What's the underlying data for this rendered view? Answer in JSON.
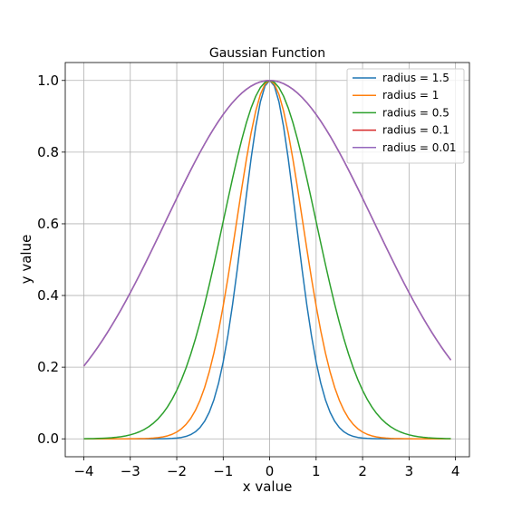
{
  "chart_data": {
    "type": "line",
    "title": "Gaussian Function",
    "xlabel": "x value",
    "ylabel": "y value",
    "xlim": [
      -4.4,
      4.3
    ],
    "ylim": [
      -0.05,
      1.05
    ],
    "xticks": [
      -4,
      -3,
      -2,
      -1,
      0,
      1,
      2,
      3,
      4
    ],
    "yticks": [
      0.0,
      0.2,
      0.4,
      0.6,
      0.8,
      1.0
    ],
    "xtick_labels": [
      "−4",
      "−3",
      "−2",
      "−1",
      "0",
      "1",
      "2",
      "3",
      "4"
    ],
    "ytick_labels": [
      "0.0",
      "0.2",
      "0.4",
      "0.6",
      "0.8",
      "1.0"
    ],
    "grid": true,
    "legend_position": "top-right",
    "x_range": [
      -4.0,
      3.9
    ],
    "x_step": 0.1,
    "series": [
      {
        "name": "radius = 1.5",
        "color": "#1f77b4",
        "sigma": 0.57
      },
      {
        "name": "radius = 1",
        "color": "#ff7f0e",
        "sigma": 0.71
      },
      {
        "name": "radius = 0.5",
        "color": "#2ca02c",
        "sigma": 1.0
      },
      {
        "name": "radius = 0.1",
        "color": "#d62728",
        "sigma": 2.24
      },
      {
        "name": "radius = 0.01",
        "color": "#9467bd",
        "sigma": 2.24
      }
    ]
  }
}
